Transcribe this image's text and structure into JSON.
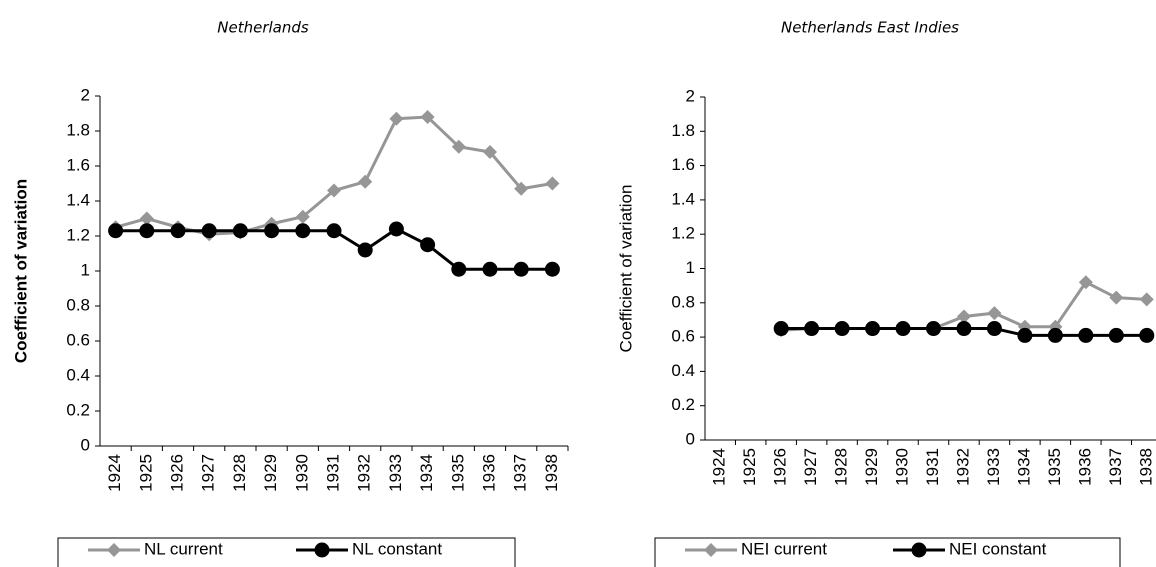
{
  "chart_data": [
    {
      "type": "line",
      "title": "Netherlands",
      "y_label": "Coefficient of variation",
      "categories": [
        "1924",
        "1925",
        "1926",
        "1927",
        "1928",
        "1929",
        "1930",
        "1931",
        "1932",
        "1933",
        "1934",
        "1935",
        "1936",
        "1937",
        "1938"
      ],
      "series": [
        {
          "name": "NL current",
          "color": "#969696",
          "marker": "diamond",
          "values": [
            1.25,
            1.3,
            1.25,
            1.21,
            1.22,
            1.27,
            1.31,
            1.46,
            1.51,
            1.87,
            1.88,
            1.71,
            1.68,
            1.47,
            1.5
          ]
        },
        {
          "name": "NL constant",
          "color": "#000000",
          "marker": "circle",
          "values": [
            1.23,
            1.23,
            1.23,
            1.23,
            1.23,
            1.23,
            1.23,
            1.23,
            1.12,
            1.24,
            1.15,
            1.01,
            1.01,
            1.01,
            1.01
          ]
        }
      ],
      "ylim": [
        0,
        2
      ],
      "yticks": [
        0,
        0.2,
        0.4,
        0.6,
        0.8,
        1,
        1.2,
        1.4,
        1.6,
        1.8,
        2
      ]
    },
    {
      "type": "line",
      "title": "Netherlands East Indies",
      "y_label": "Coefficient of variation",
      "categories": [
        "1924",
        "1925",
        "1926",
        "1927",
        "1928",
        "1929",
        "1930",
        "1931",
        "1932",
        "1933",
        "1934",
        "1935",
        "1936",
        "1937",
        "1938"
      ],
      "series": [
        {
          "name": "NEI current",
          "color": "#969696",
          "marker": "diamond",
          "values": [
            null,
            null,
            0.64,
            0.65,
            0.65,
            0.65,
            0.65,
            0.65,
            0.72,
            0.74,
            0.66,
            0.66,
            0.92,
            0.83,
            0.82
          ]
        },
        {
          "name": "NEI constant",
          "color": "#000000",
          "marker": "circle",
          "values": [
            null,
            null,
            0.65,
            0.65,
            0.65,
            0.65,
            0.65,
            0.65,
            0.65,
            0.65,
            0.61,
            0.61,
            0.61,
            0.61,
            0.61
          ]
        }
      ],
      "ylim": [
        0,
        2
      ],
      "yticks": [
        0,
        0.2,
        0.4,
        0.6,
        0.8,
        1,
        1.2,
        1.4,
        1.6,
        1.8,
        2
      ]
    }
  ]
}
